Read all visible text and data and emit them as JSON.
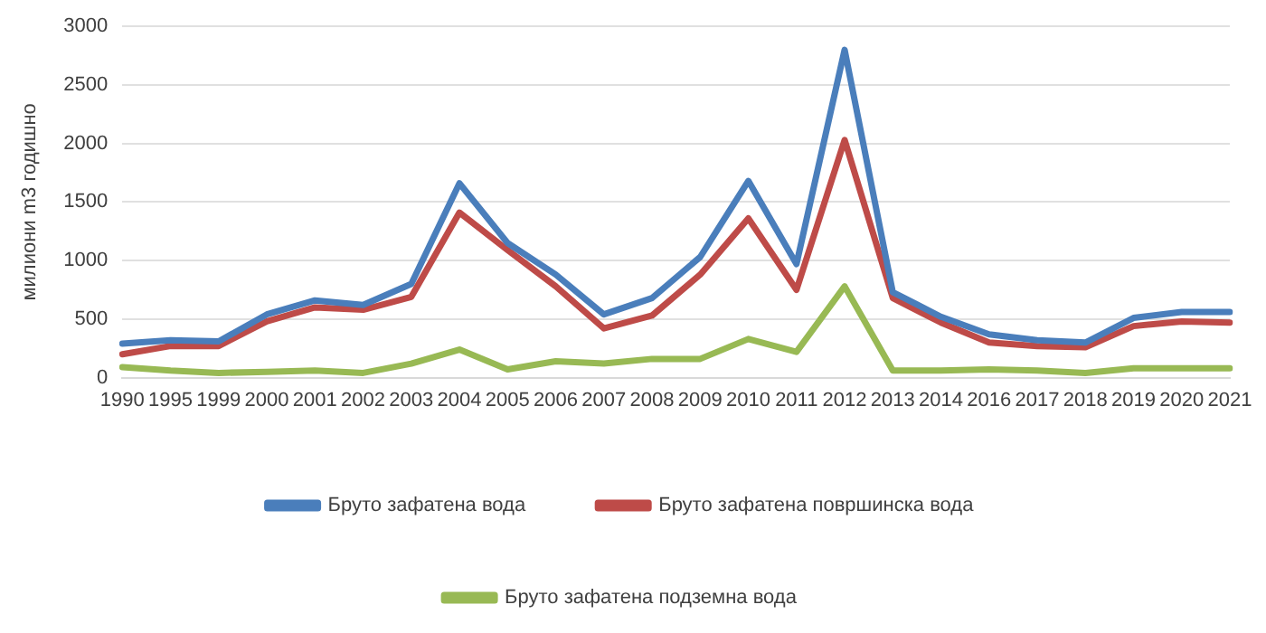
{
  "chart_data": {
    "type": "line",
    "ylabel": "милиони m3 годишно",
    "categories": [
      "1990",
      "1995",
      "1999",
      "2000",
      "2001",
      "2002",
      "2003",
      "2004",
      "2005",
      "2006",
      "2007",
      "2008",
      "2009",
      "2010",
      "2011",
      "2012",
      "2013",
      "2014",
      "2016",
      "2017",
      "2018",
      "2019",
      "2020",
      "2021"
    ],
    "series": [
      {
        "name": "Бруто зафатена вода",
        "color": "#4a7ebb",
        "values": [
          290,
          320,
          310,
          540,
          660,
          620,
          800,
          1660,
          1150,
          880,
          540,
          680,
          1030,
          1680,
          970,
          2800,
          730,
          520,
          370,
          320,
          300,
          510,
          560,
          560
        ]
      },
      {
        "name": "Бруто зафатена површинска вода",
        "color": "#be4b48",
        "values": [
          200,
          270,
          270,
          480,
          600,
          580,
          690,
          1410,
          1090,
          780,
          420,
          530,
          880,
          1360,
          750,
          2030,
          680,
          470,
          300,
          270,
          260,
          440,
          480,
          470
        ]
      },
      {
        "name": "Бруто зафатена подземна вода",
        "color": "#98b954",
        "values": [
          90,
          60,
          40,
          50,
          60,
          40,
          120,
          240,
          70,
          140,
          120,
          160,
          160,
          330,
          220,
          780,
          60,
          60,
          70,
          60,
          40,
          80,
          80,
          80
        ]
      }
    ],
    "ylim": [
      0,
      3000
    ],
    "yticks": [
      0,
      500,
      1000,
      1500,
      2000,
      2500,
      3000
    ],
    "grid": "y",
    "legend": "bottom",
    "marker": "none",
    "line_style": "solid"
  }
}
